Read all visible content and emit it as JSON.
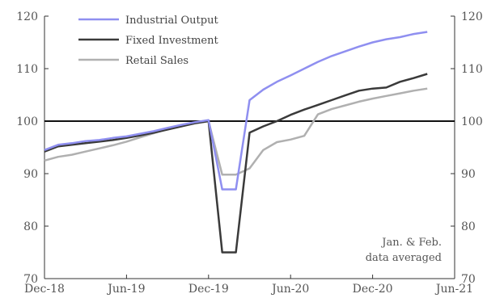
{
  "chart_data": {
    "type": "line",
    "x": [
      "2018-12",
      "2019-01",
      "2019-02",
      "2019-03",
      "2019-04",
      "2019-05",
      "2019-06",
      "2019-07",
      "2019-08",
      "2019-09",
      "2019-10",
      "2019-11",
      "2019-12",
      "2020-01",
      "2020-02",
      "2020-03",
      "2020-04",
      "2020-05",
      "2020-06",
      "2020-07",
      "2020-08",
      "2020-09",
      "2020-10",
      "2020-11",
      "2020-12",
      "2021-01",
      "2021-02",
      "2021-03",
      "2021-04"
    ],
    "series": [
      {
        "name": "Industrial Output",
        "color": "#8f8ff0",
        "values": [
          94.5,
          95.5,
          95.8,
          96.2,
          96.4,
          96.8,
          97.1,
          97.6,
          98.1,
          98.7,
          99.3,
          99.8,
          100.2,
          87.0,
          87.0,
          104.0,
          106.0,
          107.5,
          108.7,
          110.0,
          111.3,
          112.4,
          113.3,
          114.2,
          115.0,
          115.6,
          116.0,
          116.6,
          117.0
        ]
      },
      {
        "name": "Fixed Investment",
        "color": "#3a3a3a",
        "values": [
          94.2,
          95.2,
          95.5,
          95.8,
          96.1,
          96.4,
          96.8,
          97.3,
          97.8,
          98.4,
          99.0,
          99.6,
          100.0,
          75.0,
          75.0,
          97.8,
          99.0,
          100.0,
          101.2,
          102.2,
          103.1,
          104.0,
          104.9,
          105.8,
          106.2,
          106.4,
          107.5,
          108.2,
          109.0
        ]
      },
      {
        "name": "Retail Sales",
        "color": "#b0b0b0",
        "values": [
          92.5,
          93.2,
          93.6,
          94.2,
          94.8,
          95.4,
          96.1,
          96.9,
          97.7,
          98.5,
          99.1,
          99.6,
          100.0,
          89.8,
          89.8,
          91.0,
          94.5,
          96.0,
          96.5,
          97.2,
          101.3,
          102.3,
          103.0,
          103.7,
          104.3,
          104.8,
          105.3,
          105.8,
          106.2
        ]
      }
    ],
    "reference_line": 100,
    "ylim": [
      70,
      120
    ],
    "yticks": [
      70,
      80,
      90,
      100,
      110,
      120
    ],
    "xlim": [
      "2018-12",
      "2021-06"
    ],
    "xtick_labels": [
      "Dec-18",
      "Jun-19",
      "Dec-19",
      "Jun-20",
      "Dec-20",
      "Jun-21"
    ],
    "annotation": [
      "Jan. & Feb.",
      "data averaged"
    ],
    "legend_placement": "top-left",
    "grid": false
  }
}
